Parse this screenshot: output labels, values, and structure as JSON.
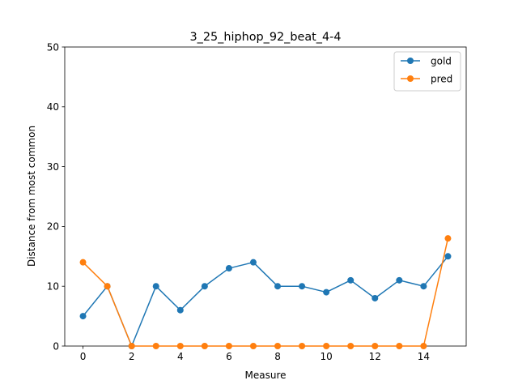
{
  "chart_data": {
    "type": "line",
    "title": "3_25_hiphop_92_beat_4-4",
    "xlabel": "Measure",
    "ylabel": "Distance from most common",
    "xlim": [
      -0.75,
      15.75
    ],
    "ylim": [
      0,
      50
    ],
    "x_ticks": [
      0,
      2,
      4,
      6,
      8,
      10,
      12,
      14
    ],
    "y_ticks": [
      0,
      10,
      20,
      30,
      40,
      50
    ],
    "x": [
      0,
      1,
      2,
      3,
      4,
      5,
      6,
      7,
      8,
      9,
      10,
      11,
      12,
      13,
      14,
      15
    ],
    "series": [
      {
        "name": "gold",
        "color": "#1f77b4",
        "values": [
          5,
          10,
          0,
          10,
          6,
          10,
          13,
          14,
          10,
          10,
          9,
          11,
          8,
          11,
          10,
          15
        ]
      },
      {
        "name": "pred",
        "color": "#ff7f0e",
        "values": [
          14,
          10,
          0,
          0,
          0,
          0,
          0,
          0,
          0,
          0,
          0,
          0,
          0,
          0,
          0,
          18
        ]
      }
    ],
    "grid": false,
    "legend": "top-right",
    "marker": "circle"
  }
}
